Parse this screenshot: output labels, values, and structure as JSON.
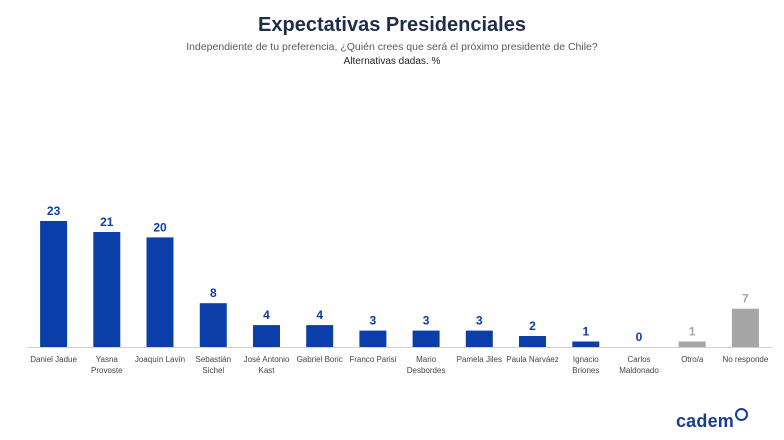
{
  "chart_data": {
    "type": "bar",
    "title": "Expectativas Presidenciales",
    "subtitle": "Independiente de tu preferencia, ¿Quién crees que será el próximo presidente de Chile?",
    "note": "Alternativas dadas. %",
    "categories": [
      [
        "Daniel Jadue"
      ],
      [
        "Yasna",
        "Provoste"
      ],
      [
        "Joaquín Lavín"
      ],
      [
        "Sebastián",
        "Sichel"
      ],
      [
        "José Antonio",
        "Kast"
      ],
      [
        "Gabriel Boric"
      ],
      [
        "Franco Parisi"
      ],
      [
        "Mario",
        "Desbordes"
      ],
      [
        "Pamela Jiles"
      ],
      [
        "Paula Narváez"
      ],
      [
        "Ignacio",
        "Briones"
      ],
      [
        "Carlos",
        "Maldonado"
      ],
      [
        "Otro/a"
      ],
      [
        "No responde"
      ]
    ],
    "values": [
      23,
      21,
      20,
      8,
      4,
      4,
      3,
      3,
      3,
      2,
      1,
      0,
      1,
      7
    ],
    "bar_kind": [
      "candidate",
      "candidate",
      "candidate",
      "candidate",
      "candidate",
      "candidate",
      "candidate",
      "candidate",
      "candidate",
      "candidate",
      "candidate",
      "candidate",
      "other",
      "other"
    ],
    "ylim": [
      0,
      23
    ],
    "xlabel": "",
    "ylabel": ""
  },
  "colors": {
    "candidate": "#0b3ea8",
    "other": "#a6a6a6",
    "candidate_label": "#0b3ea8",
    "other_label": "#a6a6a6",
    "axis": "#d0d0d0",
    "tick": "#444444"
  },
  "brand": {
    "logo_text": "cadem"
  }
}
